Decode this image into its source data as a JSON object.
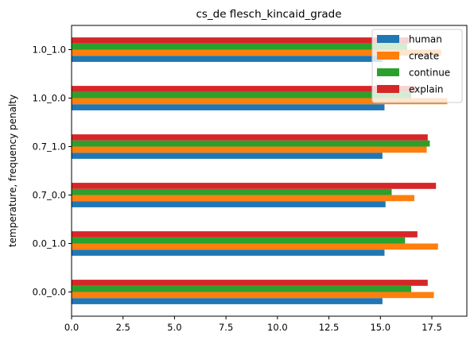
{
  "chart_data": {
    "type": "bar",
    "orientation": "horizontal",
    "title": "cs_de flesch_kincaid_grade",
    "xlabel": "",
    "ylabel": "temperature, frequency penalty",
    "xlim": [
      0,
      19.2
    ],
    "xticks": [
      "0.0",
      "2.5",
      "5.0",
      "7.5",
      "10.0",
      "12.5",
      "15.0",
      "17.5"
    ],
    "categories": [
      "0.0_0.0",
      "0.0_1.0",
      "0.7_0.0",
      "0.7_1.0",
      "1.0_0.0",
      "1.0_1.0"
    ],
    "series": [
      {
        "name": "human",
        "color": "#1f77b4",
        "values": [
          15.1,
          15.2,
          15.25,
          15.1,
          15.2,
          15.1
        ]
      },
      {
        "name": "create",
        "color": "#ff7f0e",
        "values": [
          17.6,
          17.8,
          16.65,
          17.25,
          18.25,
          17.95
        ]
      },
      {
        "name": "continue",
        "color": "#2ca02c",
        "values": [
          16.5,
          16.2,
          15.55,
          17.4,
          16.5,
          16.3
        ]
      },
      {
        "name": "explain",
        "color": "#d62728",
        "values": [
          17.3,
          16.8,
          17.7,
          17.3,
          16.7,
          16.4
        ]
      }
    ],
    "grid": false,
    "legend_position": "top-right"
  }
}
